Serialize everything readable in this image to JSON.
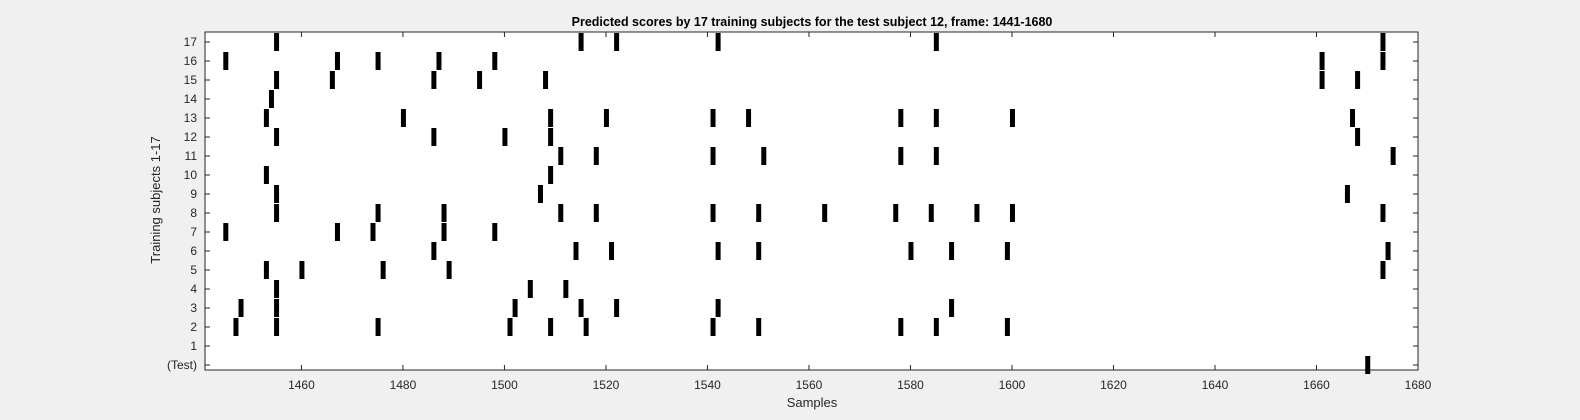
{
  "chart_data": {
    "type": "scatter",
    "marker": "vertical-bar",
    "title": "Predicted scores by 17 training subjects for the test subject 12, frame: 1441-1680",
    "xlabel": "Samples",
    "ylabel": "Training subjects 1-17",
    "xlim": [
      1441,
      1680
    ],
    "xticks": [
      1460,
      1480,
      1500,
      1520,
      1540,
      1560,
      1580,
      1600,
      1620,
      1640,
      1660,
      1680
    ],
    "yticklabels": [
      "(Test)",
      "1",
      "2",
      "3",
      "4",
      "5",
      "6",
      "7",
      "8",
      "9",
      "10",
      "11",
      "12",
      "13",
      "14",
      "15",
      "16",
      "17"
    ],
    "grid": false,
    "mark_color": "#000000",
    "series": [
      {
        "row": "(Test)",
        "x": [
          1670
        ]
      },
      {
        "row": "1",
        "x": []
      },
      {
        "row": "2",
        "x": [
          1447,
          1455,
          1475,
          1501,
          1509,
          1516,
          1541,
          1550,
          1578,
          1585,
          1599
        ]
      },
      {
        "row": "3",
        "x": [
          1448,
          1455,
          1502,
          1515,
          1522,
          1542,
          1588
        ]
      },
      {
        "row": "4",
        "x": [
          1455,
          1505,
          1512
        ]
      },
      {
        "row": "5",
        "x": [
          1453,
          1460,
          1476,
          1489,
          1673
        ]
      },
      {
        "row": "6",
        "x": [
          1486,
          1514,
          1521,
          1542,
          1550,
          1580,
          1588,
          1599,
          1674
        ]
      },
      {
        "row": "7",
        "x": [
          1445,
          1467,
          1474,
          1488,
          1498
        ]
      },
      {
        "row": "8",
        "x": [
          1455,
          1475,
          1488,
          1511,
          1518,
          1541,
          1550,
          1563,
          1577,
          1584,
          1593,
          1600,
          1673
        ]
      },
      {
        "row": "9",
        "x": [
          1455,
          1507,
          1666
        ]
      },
      {
        "row": "10",
        "x": [
          1453,
          1509
        ]
      },
      {
        "row": "11",
        "x": [
          1511,
          1518,
          1541,
          1551,
          1578,
          1585,
          1675
        ]
      },
      {
        "row": "12",
        "x": [
          1455,
          1486,
          1500,
          1509,
          1668
        ]
      },
      {
        "row": "13",
        "x": [
          1453,
          1480,
          1509,
          1520,
          1541,
          1548,
          1578,
          1585,
          1600,
          1667
        ]
      },
      {
        "row": "14",
        "x": [
          1454
        ]
      },
      {
        "row": "15",
        "x": [
          1455,
          1466,
          1486,
          1495,
          1508,
          1661,
          1668
        ]
      },
      {
        "row": "16",
        "x": [
          1445,
          1467,
          1475,
          1487,
          1498,
          1661,
          1673
        ]
      },
      {
        "row": "17",
        "x": [
          1455,
          1515,
          1522,
          1542,
          1585,
          1673
        ]
      }
    ]
  }
}
